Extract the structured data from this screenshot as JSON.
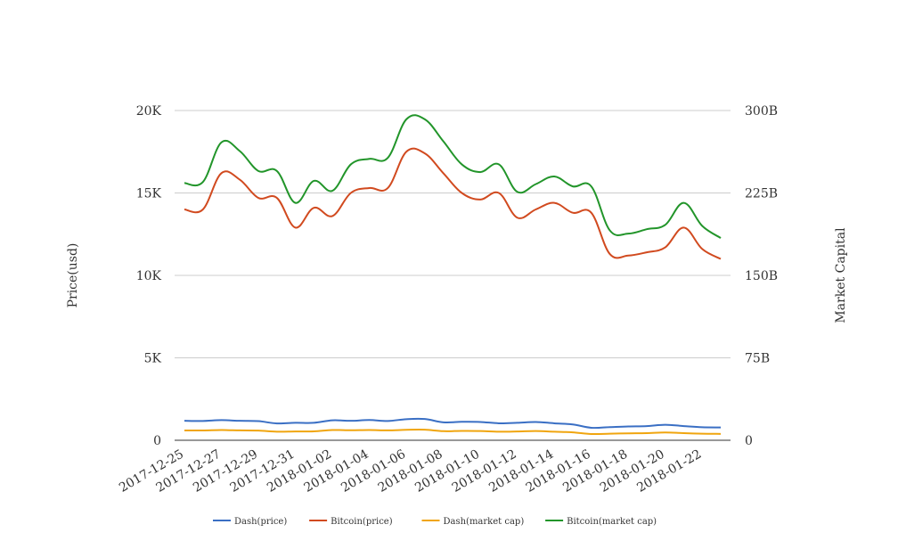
{
  "chart_data": {
    "type": "line",
    "xlabel": "",
    "ylabel_left": "Price(usd)",
    "ylabel_right": "Market Capital",
    "ylim_left": [
      0,
      20000
    ],
    "ylim_right": [
      0,
      300000000000
    ],
    "yticks_left": [
      "0",
      "5K",
      "10K",
      "15K",
      "20K"
    ],
    "yticks_right": [
      "0",
      "75B",
      "150B",
      "225B",
      "300B"
    ],
    "grid": true,
    "legend_position": "bottom",
    "x": [
      "2017-12-25",
      "2017-12-26",
      "2017-12-27",
      "2017-12-28",
      "2017-12-29",
      "2017-12-30",
      "2017-12-31",
      "2018-01-01",
      "2018-01-02",
      "2018-01-03",
      "2018-01-04",
      "2018-01-05",
      "2018-01-06",
      "2018-01-07",
      "2018-01-08",
      "2018-01-09",
      "2018-01-10",
      "2018-01-11",
      "2018-01-12",
      "2018-01-13",
      "2018-01-14",
      "2018-01-15",
      "2018-01-16",
      "2018-01-17",
      "2018-01-18",
      "2018-01-19",
      "2018-01-20",
      "2018-01-21",
      "2018-01-22",
      "2018-01-23"
    ],
    "xtick_labels": [
      "2017-12-25",
      "2017-12-27",
      "2017-12-29",
      "2017-12-31",
      "2018-01-02",
      "2018-01-04",
      "2018-01-06",
      "2018-01-08",
      "2018-01-10",
      "2018-01-12",
      "2018-01-14",
      "2018-01-16",
      "2018-01-18",
      "2018-01-20",
      "2018-01-22"
    ],
    "series": [
      {
        "name": "Dash(price)",
        "axis": "left",
        "color": "#3a6fc4",
        "values": [
          1180,
          1170,
          1220,
          1180,
          1160,
          1020,
          1060,
          1060,
          1210,
          1180,
          1230,
          1170,
          1280,
          1290,
          1090,
          1120,
          1110,
          1030,
          1060,
          1110,
          1030,
          960,
          760,
          800,
          840,
          860,
          940,
          860,
          790,
          780
        ]
      },
      {
        "name": "Bitcoin(price)",
        "axis": "left",
        "color": "#d14a1f",
        "values": [
          14000,
          14000,
          16200,
          15800,
          14700,
          14700,
          12900,
          14100,
          13600,
          15000,
          15300,
          15300,
          17500,
          17400,
          16200,
          15000,
          14600,
          15000,
          13500,
          14000,
          14400,
          13800,
          13800,
          11300,
          11200,
          11400,
          11700,
          12900,
          11600,
          11000
        ]
      },
      {
        "name": "Dash(market cap)",
        "axis": "right",
        "color": "#f0a50f",
        "values": [
          8900000000,
          8900000000,
          9300000000,
          9000000000,
          8800000000,
          7800000000,
          8000000000,
          8100000000,
          9300000000,
          9100000000,
          9300000000,
          9000000000,
          9500000000,
          9600000000,
          8300000000,
          8500000000,
          8400000000,
          7800000000,
          8000000000,
          8400000000,
          7800000000,
          7200000000,
          5700000000,
          6000000000,
          6300000000,
          6500000000,
          7100000000,
          6500000000,
          6000000000,
          5800000000
        ]
      },
      {
        "name": "Bitcoin(market cap)",
        "axis": "right",
        "color": "#22952a",
        "values": [
          234000000000,
          235000000000,
          271000000000,
          263000000000,
          245000000000,
          245000000000,
          216000000000,
          236000000000,
          227000000000,
          251000000000,
          256000000000,
          257000000000,
          292000000000,
          292000000000,
          272000000000,
          251000000000,
          244000000000,
          251000000000,
          226000000000,
          233000000000,
          240000000000,
          231000000000,
          231000000000,
          191000000000,
          188000000000,
          192000000000,
          196000000000,
          216000000000,
          195000000000,
          184000000000
        ]
      }
    ]
  }
}
